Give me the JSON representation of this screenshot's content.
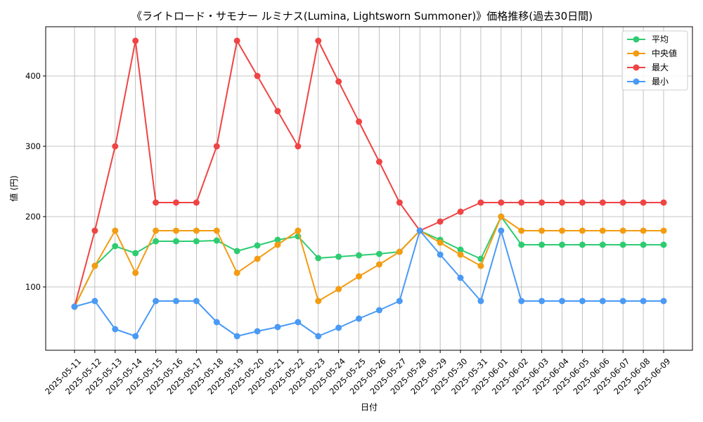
{
  "chart_data": {
    "type": "line",
    "title": "《ライトロード・サモナー ルミナス(Lumina, Lightsworn Summoner)》価格推移(過去30日間)",
    "xlabel": "日付",
    "ylabel": "値 (円)",
    "categories": [
      "2025-05-11",
      "2025-05-12",
      "2025-05-13",
      "2025-05-14",
      "2025-05-15",
      "2025-05-16",
      "2025-05-17",
      "2025-05-18",
      "2025-05-19",
      "2025-05-20",
      "2025-05-21",
      "2025-05-22",
      "2025-05-23",
      "2025-05-24",
      "2025-05-25",
      "2025-05-26",
      "2025-05-27",
      "2025-05-28",
      "2025-05-29",
      "2025-05-30",
      "2025-05-31",
      "2025-06-01",
      "2025-06-02",
      "2025-06-03",
      "2025-06-04",
      "2025-06-05",
      "2025-06-06",
      "2025-06-07",
      "2025-06-08",
      "2025-06-09"
    ],
    "ylim": [
      10,
      470
    ],
    "yticks": [
      100,
      200,
      300,
      400
    ],
    "grid": true,
    "legend_position": "top-right",
    "series": [
      {
        "name": "平均",
        "color": "#2ecc71",
        "values": [
          72,
          130,
          158,
          148,
          165,
          165,
          165,
          166,
          151,
          159,
          167,
          172,
          141,
          143,
          145,
          147,
          150,
          180,
          167,
          153,
          140,
          200,
          160,
          160,
          160,
          160,
          160,
          160,
          160,
          160
        ]
      },
      {
        "name": "中央値",
        "color": "#f39c12",
        "values": [
          72,
          130,
          180,
          120,
          180,
          180,
          180,
          180,
          120,
          140,
          160,
          180,
          80,
          97,
          115,
          132,
          150,
          180,
          163,
          146,
          130,
          200,
          180,
          180,
          180,
          180,
          180,
          180,
          180,
          180
        ]
      },
      {
        "name": "最大",
        "color": "#ef4444",
        "values": [
          72,
          180,
          300,
          450,
          220,
          220,
          220,
          300,
          450,
          400,
          350,
          300,
          450,
          392,
          335,
          278,
          220,
          180,
          193,
          207,
          220,
          220,
          220,
          220,
          220,
          220,
          220,
          220,
          220,
          220
        ]
      },
      {
        "name": "最小",
        "color": "#4a9af5",
        "values": [
          72,
          80,
          40,
          30,
          80,
          80,
          80,
          50,
          30,
          37,
          43,
          50,
          30,
          42,
          55,
          67,
          80,
          180,
          146,
          113,
          80,
          180,
          80,
          80,
          80,
          80,
          80,
          80,
          80,
          80
        ]
      }
    ]
  }
}
